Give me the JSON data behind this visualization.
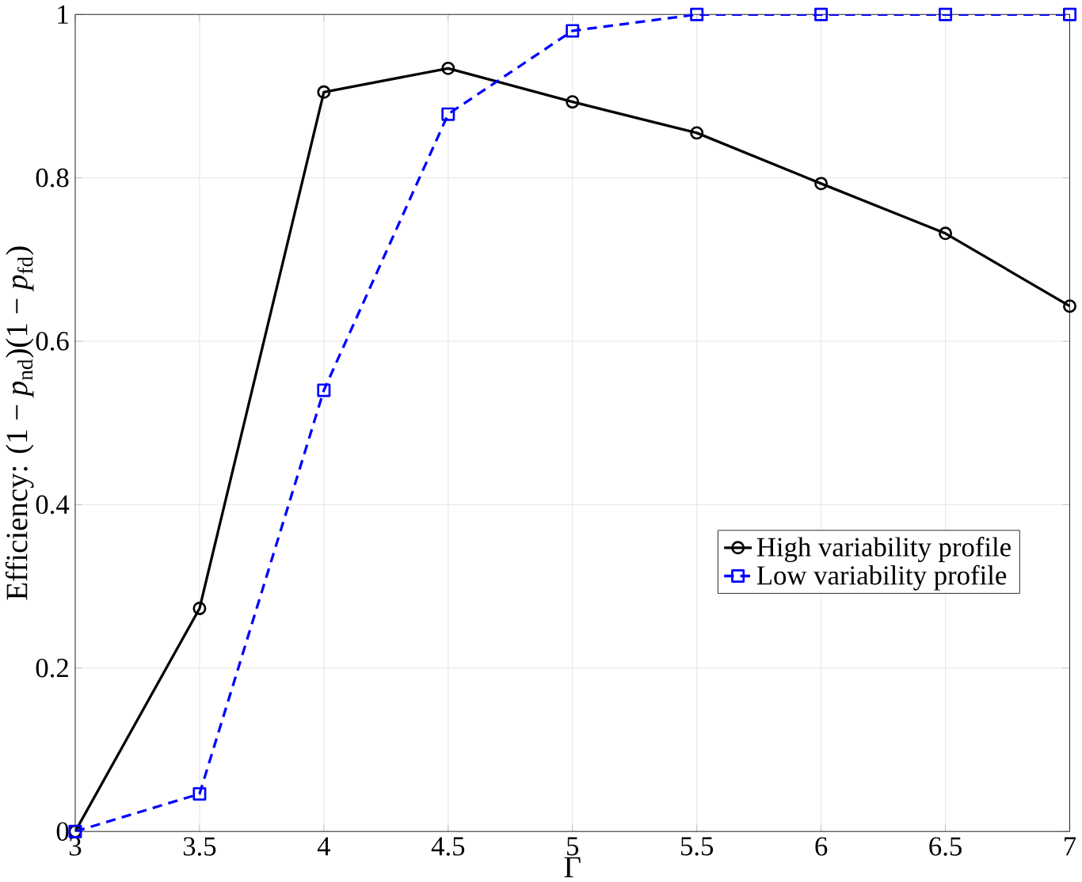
{
  "chart_data": {
    "type": "line",
    "xlabel": "Γ",
    "ylabel": "Efficiency:  (1 − *p*$_{nd}$)(1 − *p*$_{fd}$)",
    "x": [
      3,
      3.5,
      4,
      4.5,
      5,
      5.5,
      6,
      6.5,
      7
    ],
    "series": [
      {
        "name": "High variability profile",
        "color": "#000000",
        "marker": "circle",
        "line_style": "solid",
        "values": [
          0,
          0.273,
          0.905,
          0.934,
          0.893,
          0.855,
          0.793,
          0.732,
          0.643
        ]
      },
      {
        "name": "Low variability profile",
        "color": "#0000ff",
        "marker": "square",
        "line_style": "dashed",
        "values": [
          0,
          0.046,
          0.54,
          0.878,
          0.98,
          1,
          1,
          1,
          1
        ]
      }
    ],
    "xlim": [
      3,
      7
    ],
    "ylim": [
      0,
      1
    ],
    "xticks": [
      3,
      3.5,
      4,
      4.5,
      5,
      5.5,
      6,
      6.5,
      7
    ],
    "yticks": [
      0,
      0.2,
      0.4,
      0.6,
      0.8,
      1
    ],
    "grid": true,
    "legend": "right"
  }
}
